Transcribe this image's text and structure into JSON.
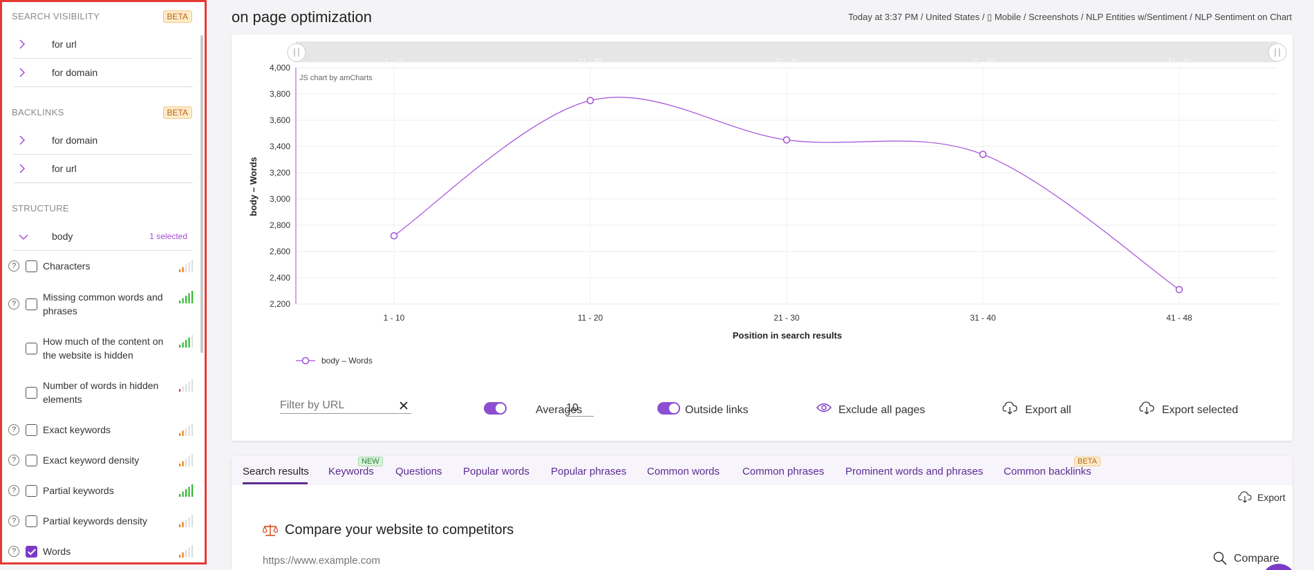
{
  "sidebar": {
    "search_visibility": {
      "title": "SEARCH VISIBILITY",
      "badge": "BETA",
      "items": [
        "for url",
        "for domain"
      ]
    },
    "backlinks": {
      "title": "BACKLINKS",
      "badge": "BETA",
      "items": [
        "for domain",
        "for url"
      ]
    },
    "structure": {
      "title": "STRUCTURE",
      "group": "body",
      "selected": "1 selected"
    },
    "metrics": [
      {
        "label": "Characters",
        "help": "?",
        "checked": false,
        "level": 2,
        "color": "#f57c00"
      },
      {
        "label": "Missing common words and phrases",
        "help": "?",
        "checked": false,
        "level": 5,
        "color": "#2eb82e"
      },
      {
        "label": "How much of the content on the website is hidden",
        "help": "",
        "checked": false,
        "level": 4,
        "color": "#2eb82e"
      },
      {
        "label": "Number of words in hidden elements",
        "help": "",
        "checked": false,
        "level": 1,
        "color": "#e53935"
      },
      {
        "label": "Exact keywords",
        "help": "?",
        "checked": false,
        "level": 2,
        "color": "#f57c00"
      },
      {
        "label": "Exact keyword density",
        "help": "?",
        "checked": false,
        "level": 2,
        "color": "#f57c00"
      },
      {
        "label": "Partial keywords",
        "help": "?",
        "checked": false,
        "level": 5,
        "color": "#2eb82e"
      },
      {
        "label": "Partial keywords density",
        "help": "?",
        "checked": false,
        "level": 2,
        "color": "#f57c00"
      },
      {
        "label": "Words",
        "help": "?",
        "checked": true,
        "level": 2,
        "color": "#f57c00"
      }
    ]
  },
  "header": {
    "title": "on page optimization",
    "meta": "Today at 3:37 PM / United States / ▯ Mobile / Screenshots / NLP Entities w/Sentiment / NLP Sentiment on Chart"
  },
  "chart_data": {
    "type": "line",
    "categories": [
      "1 - 10",
      "11 - 20",
      "21 - 30",
      "31 - 40",
      "41 - 48"
    ],
    "series": [
      {
        "name": "body – Words",
        "values": [
          2720,
          3750,
          3450,
          3340,
          2310
        ]
      }
    ],
    "ylabel": "body – Words",
    "xlabel": "Position in search results",
    "ylim": [
      2200,
      4000
    ],
    "yticks": [
      "2,200",
      "2,400",
      "2,600",
      "2,800",
      "3,000",
      "3,200",
      "3,400",
      "3,600",
      "3,800",
      "4,000"
    ],
    "credit": "JS chart by amCharts",
    "color": "#a24ed8",
    "grid": true,
    "legend": "bottom-left"
  },
  "controls": {
    "filter_placeholder": "Filter by URL",
    "averages_label": "Averages",
    "averages_value": "10",
    "outside_links_label": "Outside links",
    "exclude_label": "Exclude all pages",
    "export_all": "Export all",
    "export_selected": "Export selected"
  },
  "tabs": {
    "items": [
      "Search results",
      "Keywords",
      "Questions",
      "Popular words",
      "Popular phrases",
      "Common words",
      "Common phrases",
      "Prominent words and phrases",
      "Common backlinks"
    ],
    "keywords_badge": "NEW",
    "backlinks_badge": "BETA",
    "export": "Export",
    "compare_title": "Compare your website to competitors",
    "url_placeholder": "https://www.example.com",
    "compare_button": "Compare"
  }
}
